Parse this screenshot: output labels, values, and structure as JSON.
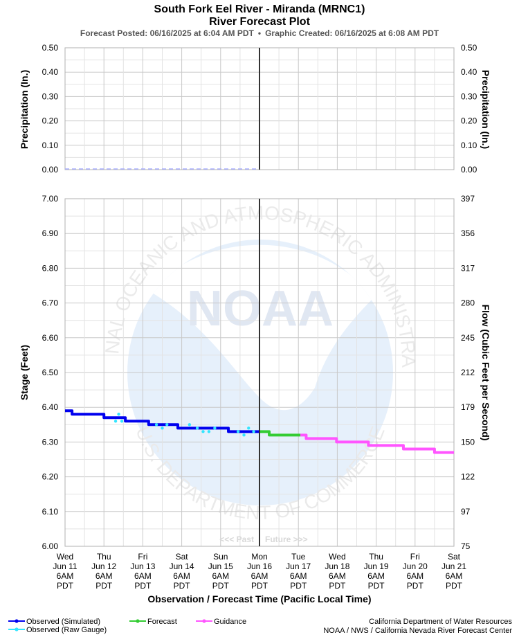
{
  "title": {
    "line1": "South Fork Eel River - Miranda (MRNC1)",
    "line2": "River Forecast Plot",
    "posted": "Forecast Posted: 06/16/2025 at 6:04 AM PDT",
    "bullet": "•",
    "created": "Graphic Created: 06/16/2025 at 6:08 AM PDT"
  },
  "watermark": {
    "logo_text": "NOAA",
    "ring_top": "NATIONAL OCEANIC AND ATMOSPHERIC ADMINISTRATION",
    "ring_bottom": "U.S. DEPARTMENT OF COMMERCE"
  },
  "past_label": "<<< Past",
  "future_label": "Future >>>",
  "x_axis_title": "Observation / Forecast Time (Pacific Local Time)",
  "x_ticks": [
    {
      "day": "Wed",
      "date": "Jun 11",
      "time": "6AM",
      "tz": "PDT"
    },
    {
      "day": "Thu",
      "date": "Jun 12",
      "time": "6AM",
      "tz": "PDT"
    },
    {
      "day": "Fri",
      "date": "Jun 13",
      "time": "6AM",
      "tz": "PDT"
    },
    {
      "day": "Sat",
      "date": "Jun 14",
      "time": "6AM",
      "tz": "PDT"
    },
    {
      "day": "Sun",
      "date": "Jun 15",
      "time": "6AM",
      "tz": "PDT"
    },
    {
      "day": "Mon",
      "date": "Jun 16",
      "time": "6AM",
      "tz": "PDT"
    },
    {
      "day": "Tue",
      "date": "Jun 17",
      "time": "6AM",
      "tz": "PDT"
    },
    {
      "day": "Wed",
      "date": "Jun 18",
      "time": "6AM",
      "tz": "PDT"
    },
    {
      "day": "Thu",
      "date": "Jun 19",
      "time": "6AM",
      "tz": "PDT"
    },
    {
      "day": "Fri",
      "date": "Jun 20",
      "time": "6AM",
      "tz": "PDT"
    },
    {
      "day": "Sat",
      "date": "Jun 21",
      "time": "6AM",
      "tz": "PDT"
    }
  ],
  "legend": [
    {
      "label": "Observed (Simulated)",
      "color": "#0000ee"
    },
    {
      "label": "Observed (Raw Gauge)",
      "color": "#33e5ff"
    },
    {
      "label": "Forecast",
      "color": "#33cc33"
    },
    {
      "label": "Guidance",
      "color": "#ff55ff"
    }
  ],
  "credits": {
    "line1": "California Department of Water Resources",
    "line2": "NOAA / NWS / California Nevada River Forecast Center"
  },
  "chart_data": [
    {
      "type": "line",
      "panel": "precipitation",
      "ylabel_left": "Precipitation (In.)",
      "ylabel_right": "Precipitation (In.)",
      "ylim": [
        0,
        0.5
      ],
      "y_ticks": [
        "0.00",
        "0.10",
        "0.20",
        "0.30",
        "0.40",
        "0.50"
      ],
      "series": [
        {
          "color": "#aab0ff",
          "style": "dashed",
          "points": [
            [
              0,
              0
            ],
            [
              5,
              0
            ]
          ]
        }
      ],
      "grid": true
    },
    {
      "type": "line",
      "panel": "stage",
      "ylabel_left": "Stage (Feet)",
      "ylabel_right": "Flow (Cubic Feet per Second)",
      "ylim": [
        6.0,
        7.0
      ],
      "y_ticks": [
        "6.00",
        "6.10",
        "6.20",
        "6.30",
        "6.40",
        "6.50",
        "6.60",
        "6.70",
        "6.80",
        "6.90",
        "7.00"
      ],
      "y2_ticks": [
        "75",
        "97",
        "122",
        "150",
        "179",
        "212",
        "245",
        "280",
        "317",
        "356",
        "397"
      ],
      "x_units": "days after Wed Jun 11 6AM PDT",
      "now_x": 5.0,
      "grid": true,
      "series": [
        {
          "name": "Observed (Simulated)",
          "color": "#0000ee",
          "width": 4,
          "points": [
            [
              0,
              6.39
            ],
            [
              0.18,
              6.39
            ],
            [
              0.18,
              6.38
            ],
            [
              1.0,
              6.38
            ],
            [
              1.0,
              6.37
            ],
            [
              1.55,
              6.37
            ],
            [
              1.55,
              6.36
            ],
            [
              2.15,
              6.36
            ],
            [
              2.15,
              6.35
            ],
            [
              2.9,
              6.35
            ],
            [
              2.9,
              6.34
            ],
            [
              4.2,
              6.34
            ],
            [
              4.2,
              6.33
            ],
            [
              5.0,
              6.33
            ]
          ]
        },
        {
          "name": "Observed (Raw Gauge)",
          "color": "#33e5ff",
          "width": 2,
          "points": [
            [
              1.3,
              6.36
            ],
            [
              1.38,
              6.38
            ],
            [
              1.46,
              6.36
            ],
            [
              2.35,
              6.35
            ],
            [
              2.5,
              6.34
            ],
            [
              2.62,
              6.35
            ],
            [
              3.2,
              6.35
            ],
            [
              3.4,
              6.34
            ],
            [
              3.55,
              6.33
            ],
            [
              3.7,
              6.33
            ],
            [
              3.85,
              6.34
            ],
            [
              4.45,
              6.33
            ],
            [
              4.6,
              6.32
            ],
            [
              4.72,
              6.34
            ],
            [
              4.85,
              6.33
            ]
          ]
        },
        {
          "name": "Forecast",
          "color": "#33cc33",
          "width": 4,
          "points": [
            [
              5.0,
              6.33
            ],
            [
              5.25,
              6.33
            ],
            [
              5.25,
              6.32
            ],
            [
              6.05,
              6.32
            ]
          ]
        },
        {
          "name": "Guidance",
          "color": "#ff55ff",
          "width": 4,
          "points": [
            [
              6.05,
              6.32
            ],
            [
              6.2,
              6.32
            ],
            [
              6.2,
              6.31
            ],
            [
              6.98,
              6.31
            ],
            [
              6.98,
              6.3
            ],
            [
              7.8,
              6.3
            ],
            [
              7.8,
              6.29
            ],
            [
              8.7,
              6.29
            ],
            [
              8.7,
              6.28
            ],
            [
              9.5,
              6.28
            ],
            [
              9.5,
              6.27
            ],
            [
              10.0,
              6.27
            ]
          ]
        }
      ]
    }
  ]
}
